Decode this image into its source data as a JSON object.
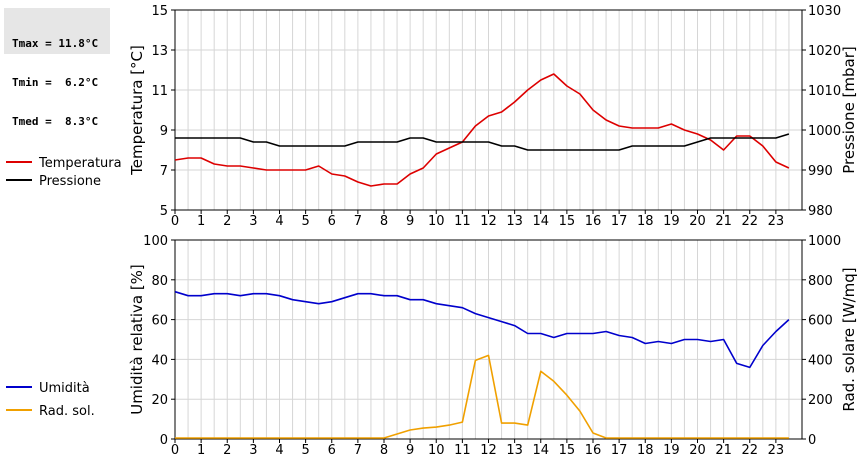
{
  "stats": {
    "tmax": "Tmax = 11.8°C",
    "tmin": "Tmin =  6.2°C",
    "tmed": "Tmed =  8.3°C"
  },
  "colors": {
    "temperature": "#dd0000",
    "pressure": "#000000",
    "humidity": "#0000cc",
    "radiation": "#f0a000",
    "grid": "#d6d6d6"
  },
  "chart_data": [
    {
      "type": "line",
      "x_ticks": [
        "0",
        "1",
        "2",
        "3",
        "4",
        "5",
        "6",
        "7",
        "8",
        "9",
        "10",
        "11",
        "12",
        "13",
        "14",
        "15",
        "16",
        "17",
        "18",
        "19",
        "20",
        "21",
        "22",
        "23"
      ],
      "xlim": [
        0,
        24
      ],
      "ylabel": "Temperatura [°C]",
      "ylim": [
        5,
        15
      ],
      "y_ticks": [
        "5",
        "7",
        "9",
        "11",
        "13",
        "15"
      ],
      "y2label": "Pressione [mbar]",
      "y2lim": [
        980,
        1030
      ],
      "y2_ticks": [
        "980",
        "990",
        "1000",
        "1010",
        "1020",
        "1030"
      ],
      "legend": "left",
      "grid": true,
      "series": [
        {
          "name": "Temperatura",
          "axis": "left",
          "x": [
            0,
            0.5,
            1,
            1.5,
            2,
            2.5,
            3,
            3.5,
            4,
            4.5,
            5,
            5.5,
            6,
            6.5,
            7,
            7.5,
            8,
            8.5,
            9,
            9.5,
            10,
            10.5,
            11,
            11.5,
            12,
            12.5,
            13,
            13.5,
            14,
            14.5,
            15,
            15.5,
            16,
            16.5,
            17,
            17.5,
            18,
            18.5,
            19,
            19.5,
            20,
            20.5,
            21,
            21.5,
            22,
            22.5,
            23,
            23.5
          ],
          "values": [
            7.5,
            7.6,
            7.6,
            7.3,
            7.2,
            7.2,
            7.1,
            7.0,
            7.0,
            7.0,
            7.0,
            7.2,
            6.8,
            6.7,
            6.4,
            6.2,
            6.3,
            6.3,
            6.8,
            7.1,
            7.8,
            8.1,
            8.4,
            9.2,
            9.7,
            9.9,
            10.4,
            11.0,
            11.5,
            11.8,
            11.2,
            10.8,
            10.0,
            9.5,
            9.2,
            9.1,
            9.1,
            9.1,
            9.3,
            9.0,
            8.8,
            8.5,
            8.0,
            8.7,
            8.7,
            8.2,
            7.4,
            7.1
          ]
        },
        {
          "name": "Pressione",
          "axis": "right",
          "x": [
            0,
            1,
            2,
            2.5,
            3,
            3.5,
            4,
            4.5,
            5,
            5.5,
            6,
            6.5,
            7,
            7.5,
            8,
            8.5,
            9,
            9.5,
            10,
            10.5,
            11,
            11.5,
            12,
            12.5,
            13,
            13.5,
            14,
            14.5,
            15,
            15.5,
            16,
            16.5,
            17,
            17.5,
            18,
            18.5,
            19,
            19.5,
            20,
            20.5,
            21,
            21.5,
            22,
            22.5,
            23,
            23.5
          ],
          "values": [
            998,
            998,
            998,
            998,
            997,
            997,
            996,
            996,
            996,
            996,
            996,
            996,
            997,
            997,
            997,
            997,
            998,
            998,
            997,
            997,
            997,
            997,
            997,
            996,
            996,
            995,
            995,
            995,
            995,
            995,
            995,
            995,
            995,
            996,
            996,
            996,
            996,
            996,
            997,
            998,
            998,
            998,
            998,
            998,
            998,
            999
          ]
        }
      ]
    },
    {
      "type": "line",
      "x_ticks": [
        "0",
        "1",
        "2",
        "3",
        "4",
        "5",
        "6",
        "7",
        "8",
        "9",
        "10",
        "11",
        "12",
        "13",
        "14",
        "15",
        "16",
        "17",
        "18",
        "19",
        "20",
        "21",
        "22",
        "23"
      ],
      "xlim": [
        0,
        24
      ],
      "ylabel": "Umidità relativa [%]",
      "ylim": [
        0,
        100
      ],
      "y_ticks": [
        "0",
        "20",
        "40",
        "60",
        "80",
        "100"
      ],
      "y2label": "Rad. solare [W/mq]",
      "y2lim": [
        0,
        1000
      ],
      "y2_ticks": [
        "0",
        "200",
        "400",
        "600",
        "800",
        "1000"
      ],
      "legend": "left",
      "grid": true,
      "series": [
        {
          "name": "Umidità",
          "axis": "left",
          "x": [
            0,
            0.5,
            1,
            1.5,
            2,
            2.5,
            3,
            3.5,
            4,
            4.5,
            5,
            5.5,
            6,
            6.5,
            7,
            7.5,
            8,
            8.5,
            9,
            9.5,
            10,
            10.5,
            11,
            11.5,
            12,
            12.5,
            13,
            13.5,
            14,
            14.5,
            15,
            15.5,
            16,
            16.5,
            17,
            17.5,
            18,
            18.5,
            19,
            19.5,
            20,
            20.5,
            21,
            21.5,
            22,
            22.5,
            23,
            23.5
          ],
          "values": [
            74,
            72,
            72,
            73,
            73,
            72,
            73,
            73,
            72,
            70,
            69,
            68,
            69,
            71,
            73,
            73,
            72,
            72,
            70,
            70,
            68,
            67,
            66,
            63,
            61,
            59,
            57,
            53,
            53,
            51,
            53,
            53,
            53,
            54,
            52,
            51,
            48,
            49,
            48,
            50,
            50,
            49,
            50,
            38,
            36,
            47,
            54,
            60
          ]
        },
        {
          "name": "Rad. sol.",
          "axis": "right",
          "x": [
            0,
            1,
            2,
            3,
            4,
            5,
            6,
            7,
            8,
            8.5,
            9,
            9.5,
            10,
            10.5,
            11,
            11.5,
            12,
            12.5,
            13,
            13.5,
            14,
            14.5,
            15,
            15.5,
            16,
            16.5,
            17,
            18,
            19,
            20,
            21,
            22,
            23,
            23.5
          ],
          "values": [
            5,
            5,
            5,
            5,
            5,
            5,
            5,
            5,
            5,
            25,
            45,
            55,
            60,
            70,
            85,
            395,
            420,
            80,
            80,
            70,
            340,
            290,
            220,
            140,
            30,
            5,
            5,
            5,
            5,
            5,
            5,
            5,
            5,
            5
          ]
        }
      ]
    }
  ]
}
